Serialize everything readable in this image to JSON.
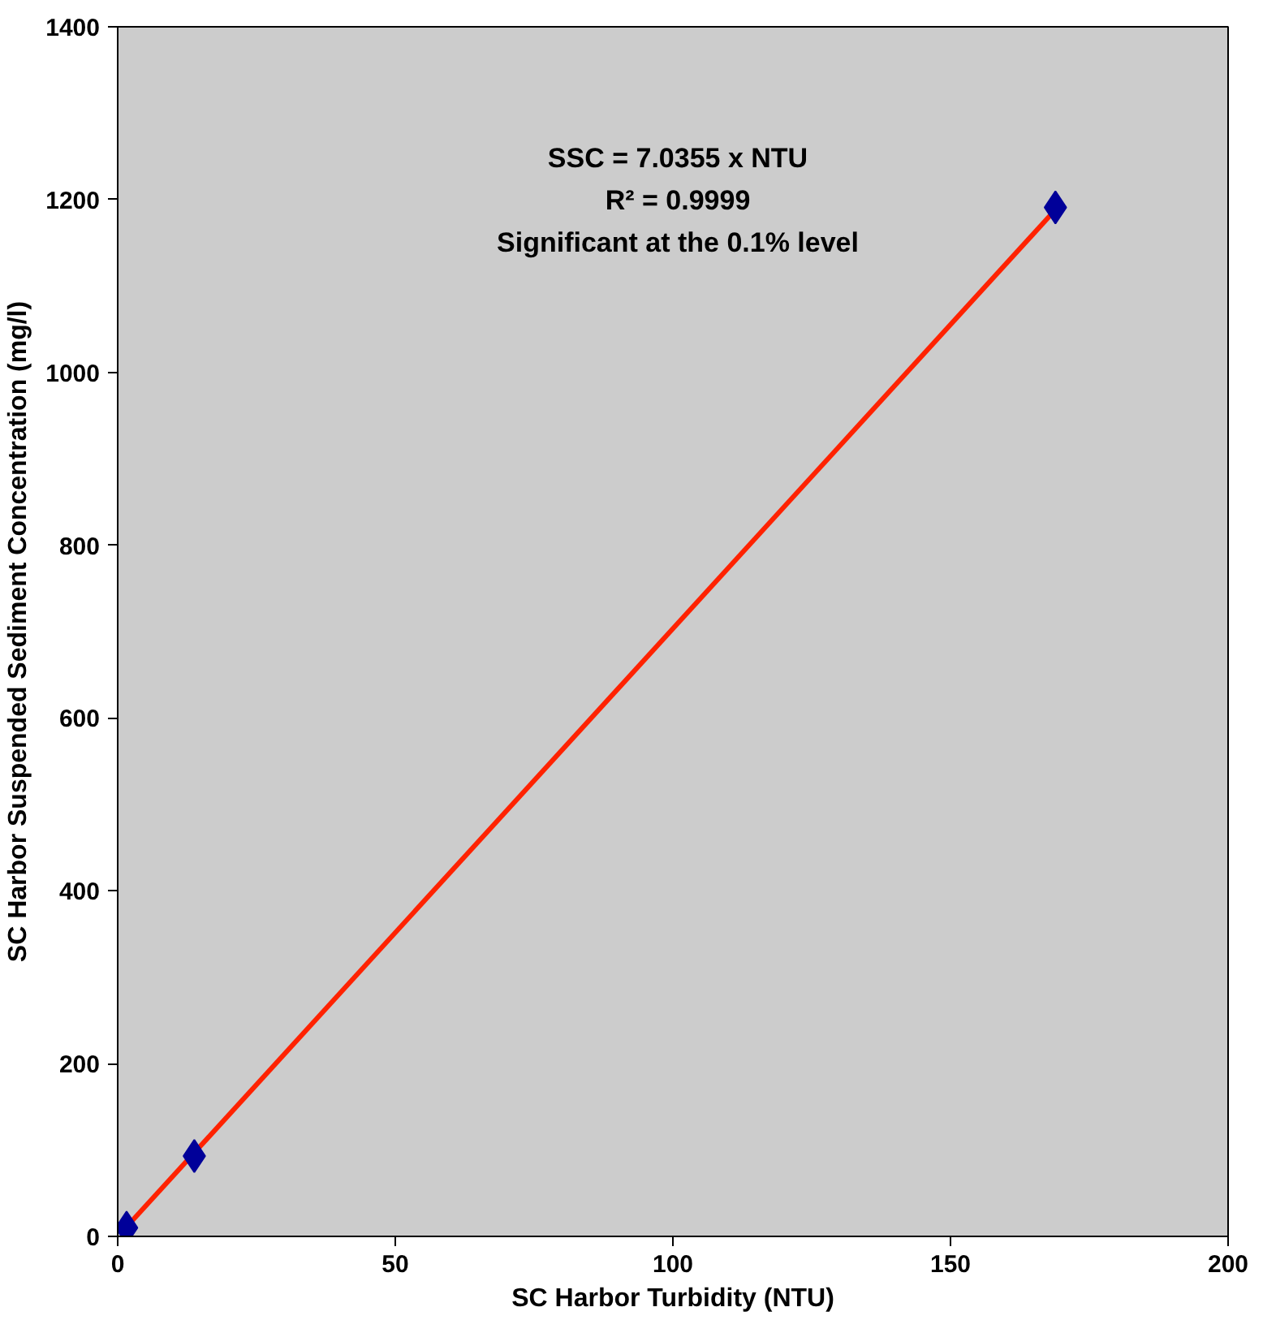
{
  "chart_data": {
    "type": "scatter",
    "xlabel": "SC Harbor Turbidity (NTU)",
    "ylabel": "SC Harbor Suspended Sediment Concentration (mg/l)",
    "annotations": [
      "SSC = 7.0355 x NTU",
      "R² = 0.9999",
      "Significant at the 0.1% level"
    ],
    "xlim": [
      0,
      200
    ],
    "xticks": [
      0,
      50,
      100,
      150,
      200
    ],
    "ylim": [
      0,
      1400
    ],
    "yticks": [
      0,
      200,
      400,
      600,
      800,
      1000,
      1200,
      1400
    ],
    "grid": false,
    "marker": "diamond",
    "series": [
      {
        "type": "line",
        "color": "#ff2200",
        "x": [
          1.6,
          169
        ],
        "values": [
          11,
          1189
        ],
        "line_style": "solid",
        "marker": "none"
      },
      {
        "color": "#000099",
        "x": [
          1.6,
          13.8,
          168.9
        ],
        "values": [
          10,
          93,
          1191
        ]
      }
    ]
  }
}
